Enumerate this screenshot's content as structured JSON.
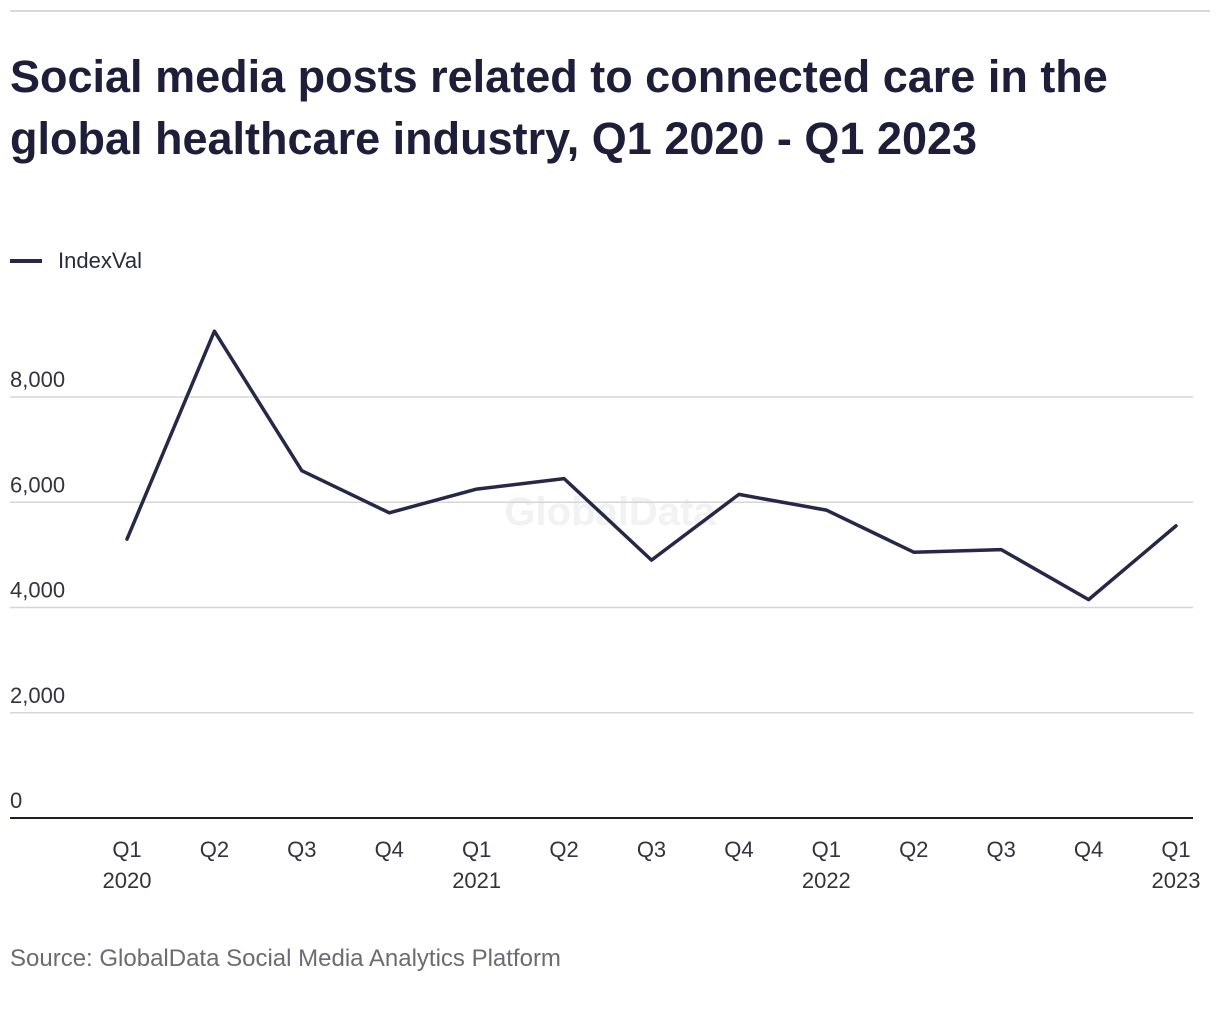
{
  "chart_data": {
    "type": "line",
    "title": "Social media posts related to connected care in the global healthcare industry, Q1 2020 - Q1 2023",
    "categories": [
      [
        "Q1",
        "2020"
      ],
      [
        "Q2",
        ""
      ],
      [
        "Q3",
        ""
      ],
      [
        "Q4",
        ""
      ],
      [
        "Q1",
        "2021"
      ],
      [
        "Q2",
        ""
      ],
      [
        "Q3",
        ""
      ],
      [
        "Q4",
        ""
      ],
      [
        "Q1",
        "2022"
      ],
      [
        "Q2",
        ""
      ],
      [
        "Q3",
        ""
      ],
      [
        "Q4",
        ""
      ],
      [
        "Q1",
        "2023"
      ]
    ],
    "series": [
      {
        "name": "IndexVal",
        "color": "#27274a",
        "values": [
          5300,
          9250,
          6600,
          5800,
          6250,
          6450,
          4900,
          6150,
          5850,
          5050,
          5100,
          4150,
          5550
        ]
      }
    ],
    "yticks": [
      0,
      2000,
      4000,
      6000,
      8000
    ],
    "ytick_labels": [
      "0",
      "2,000",
      "4,000",
      "6,000",
      "8,000"
    ],
    "ylim": [
      0,
      10000
    ],
    "xlabel": "",
    "ylabel": "",
    "legend": "top-left",
    "grid": true
  },
  "watermark": "GlobalData",
  "source": "Source: GlobalData Social Media Analytics Platform"
}
